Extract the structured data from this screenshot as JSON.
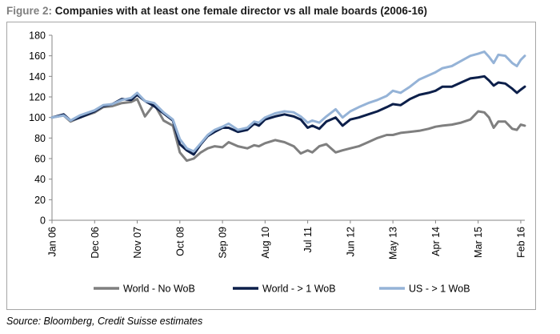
{
  "title": {
    "label": "Figure 2:",
    "text": "Companies with at least one female director vs all male boards (2006-16)"
  },
  "source": "Source: Bloomberg, Credit Suisse estimates",
  "chart_data": {
    "type": "line",
    "title": "Companies with at least one female director vs all male boards (2006-16)",
    "xlabel": "",
    "ylabel": "",
    "ylim": [
      0,
      180
    ],
    "yticks": [
      0,
      20,
      40,
      60,
      80,
      100,
      120,
      140,
      160,
      180
    ],
    "xlim": [
      2006.0,
      2016.17
    ],
    "grid": false,
    "legend": "bottom",
    "xtick_labels": [
      {
        "label": "Jan 06",
        "x": 2006.0
      },
      {
        "label": "Dec 06",
        "x": 2006.917
      },
      {
        "label": "Nov 07",
        "x": 2007.833
      },
      {
        "label": "Oct 08",
        "x": 2008.75
      },
      {
        "label": "Sep 09",
        "x": 2009.667
      },
      {
        "label": "Aug 10",
        "x": 2010.583
      },
      {
        "label": "Jul 11",
        "x": 2011.5
      },
      {
        "label": "Jun 12",
        "x": 2012.417
      },
      {
        "label": "May 13",
        "x": 2013.333
      },
      {
        "label": "Apr 14",
        "x": 2014.25
      },
      {
        "label": "Mar 15",
        "x": 2015.167
      },
      {
        "label": "Feb 16",
        "x": 2016.083
      }
    ],
    "x": [
      2006.0,
      2006.25,
      2006.4,
      2006.6,
      2006.917,
      2007.1,
      2007.3,
      2007.5,
      2007.7,
      2007.833,
      2008.0,
      2008.2,
      2008.4,
      2008.6,
      2008.75,
      2008.9,
      2009.05,
      2009.2,
      2009.35,
      2009.5,
      2009.667,
      2009.8,
      2010.0,
      2010.2,
      2010.35,
      2010.45,
      2010.583,
      2010.8,
      2011.0,
      2011.2,
      2011.35,
      2011.5,
      2011.6,
      2011.75,
      2011.9,
      2012.1,
      2012.25,
      2012.417,
      2012.6,
      2012.8,
      2013.0,
      2013.2,
      2013.333,
      2013.5,
      2013.7,
      2013.9,
      2014.1,
      2014.25,
      2014.4,
      2014.6,
      2014.8,
      2015.0,
      2015.167,
      2015.3,
      2015.4,
      2015.5,
      2015.6,
      2015.75,
      2015.9,
      2016.0,
      2016.083,
      2016.17
    ],
    "series": [
      {
        "name": "World - No WoB",
        "color": "#7f7f7f",
        "values": [
          100,
          102,
          96,
          100,
          105,
          110,
          111,
          114,
          115,
          118,
          101,
          113,
          97,
          92,
          66,
          58,
          60,
          66,
          70,
          72,
          71,
          76,
          72,
          70,
          73,
          72,
          75,
          78,
          76,
          72,
          65,
          68,
          66,
          72,
          74,
          66,
          68,
          70,
          72,
          76,
          80,
          83,
          83,
          85,
          86,
          87,
          89,
          91,
          92,
          93,
          95,
          98,
          106,
          105,
          100,
          90,
          96,
          96,
          89,
          88,
          93,
          92
        ],
        "colors_note": ""
      },
      {
        "name": "World - > 1 WoB",
        "color": "#0c1f4a",
        "values": [
          100,
          103,
          97,
          100,
          106,
          111,
          113,
          118,
          117,
          122,
          116,
          111,
          104,
          97,
          74,
          68,
          64,
          74,
          82,
          86,
          90,
          90,
          86,
          88,
          94,
          92,
          98,
          101,
          103,
          101,
          98,
          90,
          92,
          89,
          96,
          100,
          92,
          98,
          100,
          103,
          106,
          110,
          113,
          112,
          118,
          122,
          124,
          126,
          130,
          130,
          134,
          138,
          139,
          140,
          136,
          131,
          134,
          133,
          128,
          124,
          127,
          130
        ]
      },
      {
        "name": "US - > 1 WoB",
        "color": "#95b3d7",
        "values": [
          100,
          102,
          97,
          102,
          107,
          112,
          113,
          117,
          119,
          124,
          116,
          114,
          105,
          98,
          79,
          70,
          67,
          75,
          83,
          88,
          91,
          94,
          88,
          90,
          96,
          95,
          100,
          104,
          106,
          105,
          101,
          95,
          97,
          95,
          101,
          108,
          100,
          106,
          110,
          114,
          117,
          121,
          126,
          124,
          130,
          137,
          141,
          144,
          148,
          150,
          155,
          160,
          162,
          164,
          159,
          153,
          161,
          160,
          153,
          150,
          156,
          160
        ]
      }
    ]
  }
}
